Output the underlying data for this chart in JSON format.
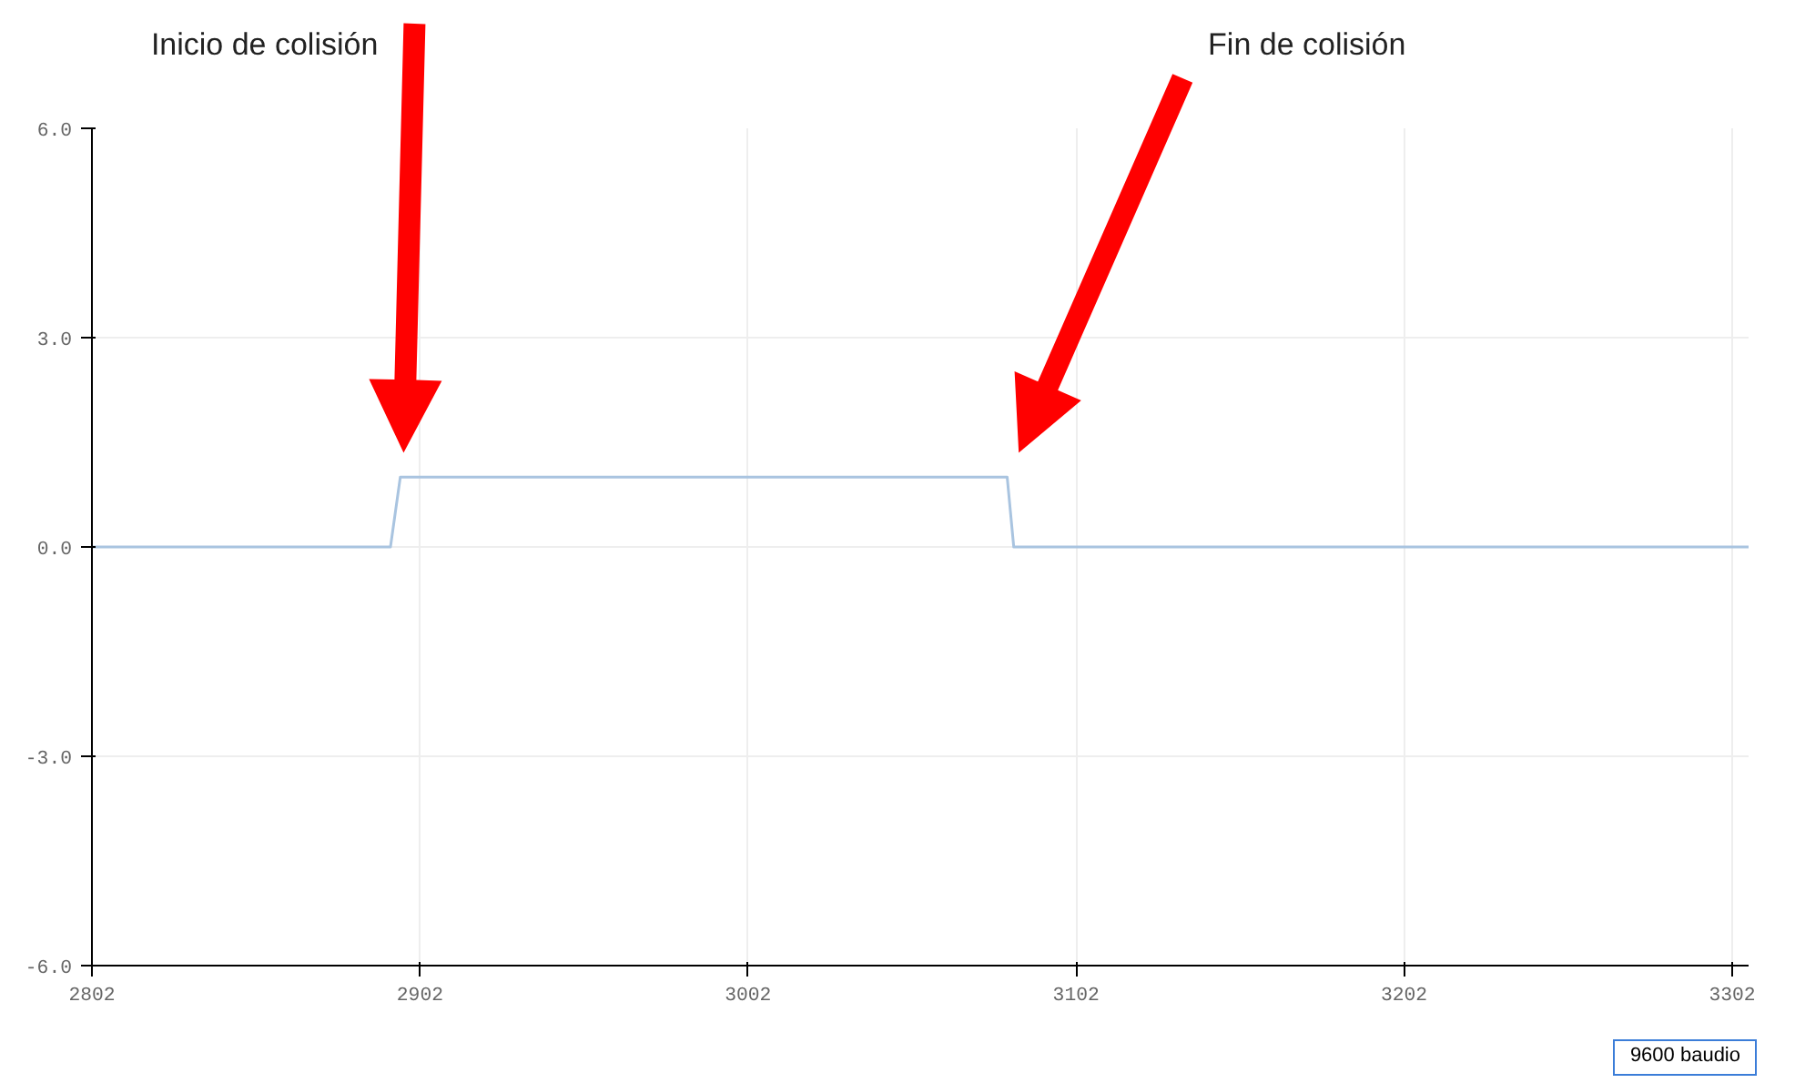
{
  "chart_data": {
    "type": "line",
    "x": [
      2802,
      2893,
      2896,
      3081,
      3083,
      3307
    ],
    "series": [
      {
        "color": "#a9c4e0",
        "values": [
          0,
          0,
          1,
          1,
          0,
          0
        ]
      }
    ],
    "xlim": [
      2802,
      3307
    ],
    "xticks": [
      2802,
      2902,
      3002,
      3102,
      3202,
      3302
    ],
    "ylim": [
      -6,
      6
    ],
    "yticks": [
      {
        "value": -6,
        "label": "-6.0"
      },
      {
        "value": -3,
        "label": "-3.0"
      },
      {
        "value": 0,
        "label": "0.0"
      },
      {
        "value": 3,
        "label": "3.0"
      },
      {
        "value": 6,
        "label": "6.0"
      }
    ],
    "grid": true,
    "annotations": [
      "Inicio de colisión",
      "Fin de colisión",
      "9600 baudio"
    ]
  }
}
